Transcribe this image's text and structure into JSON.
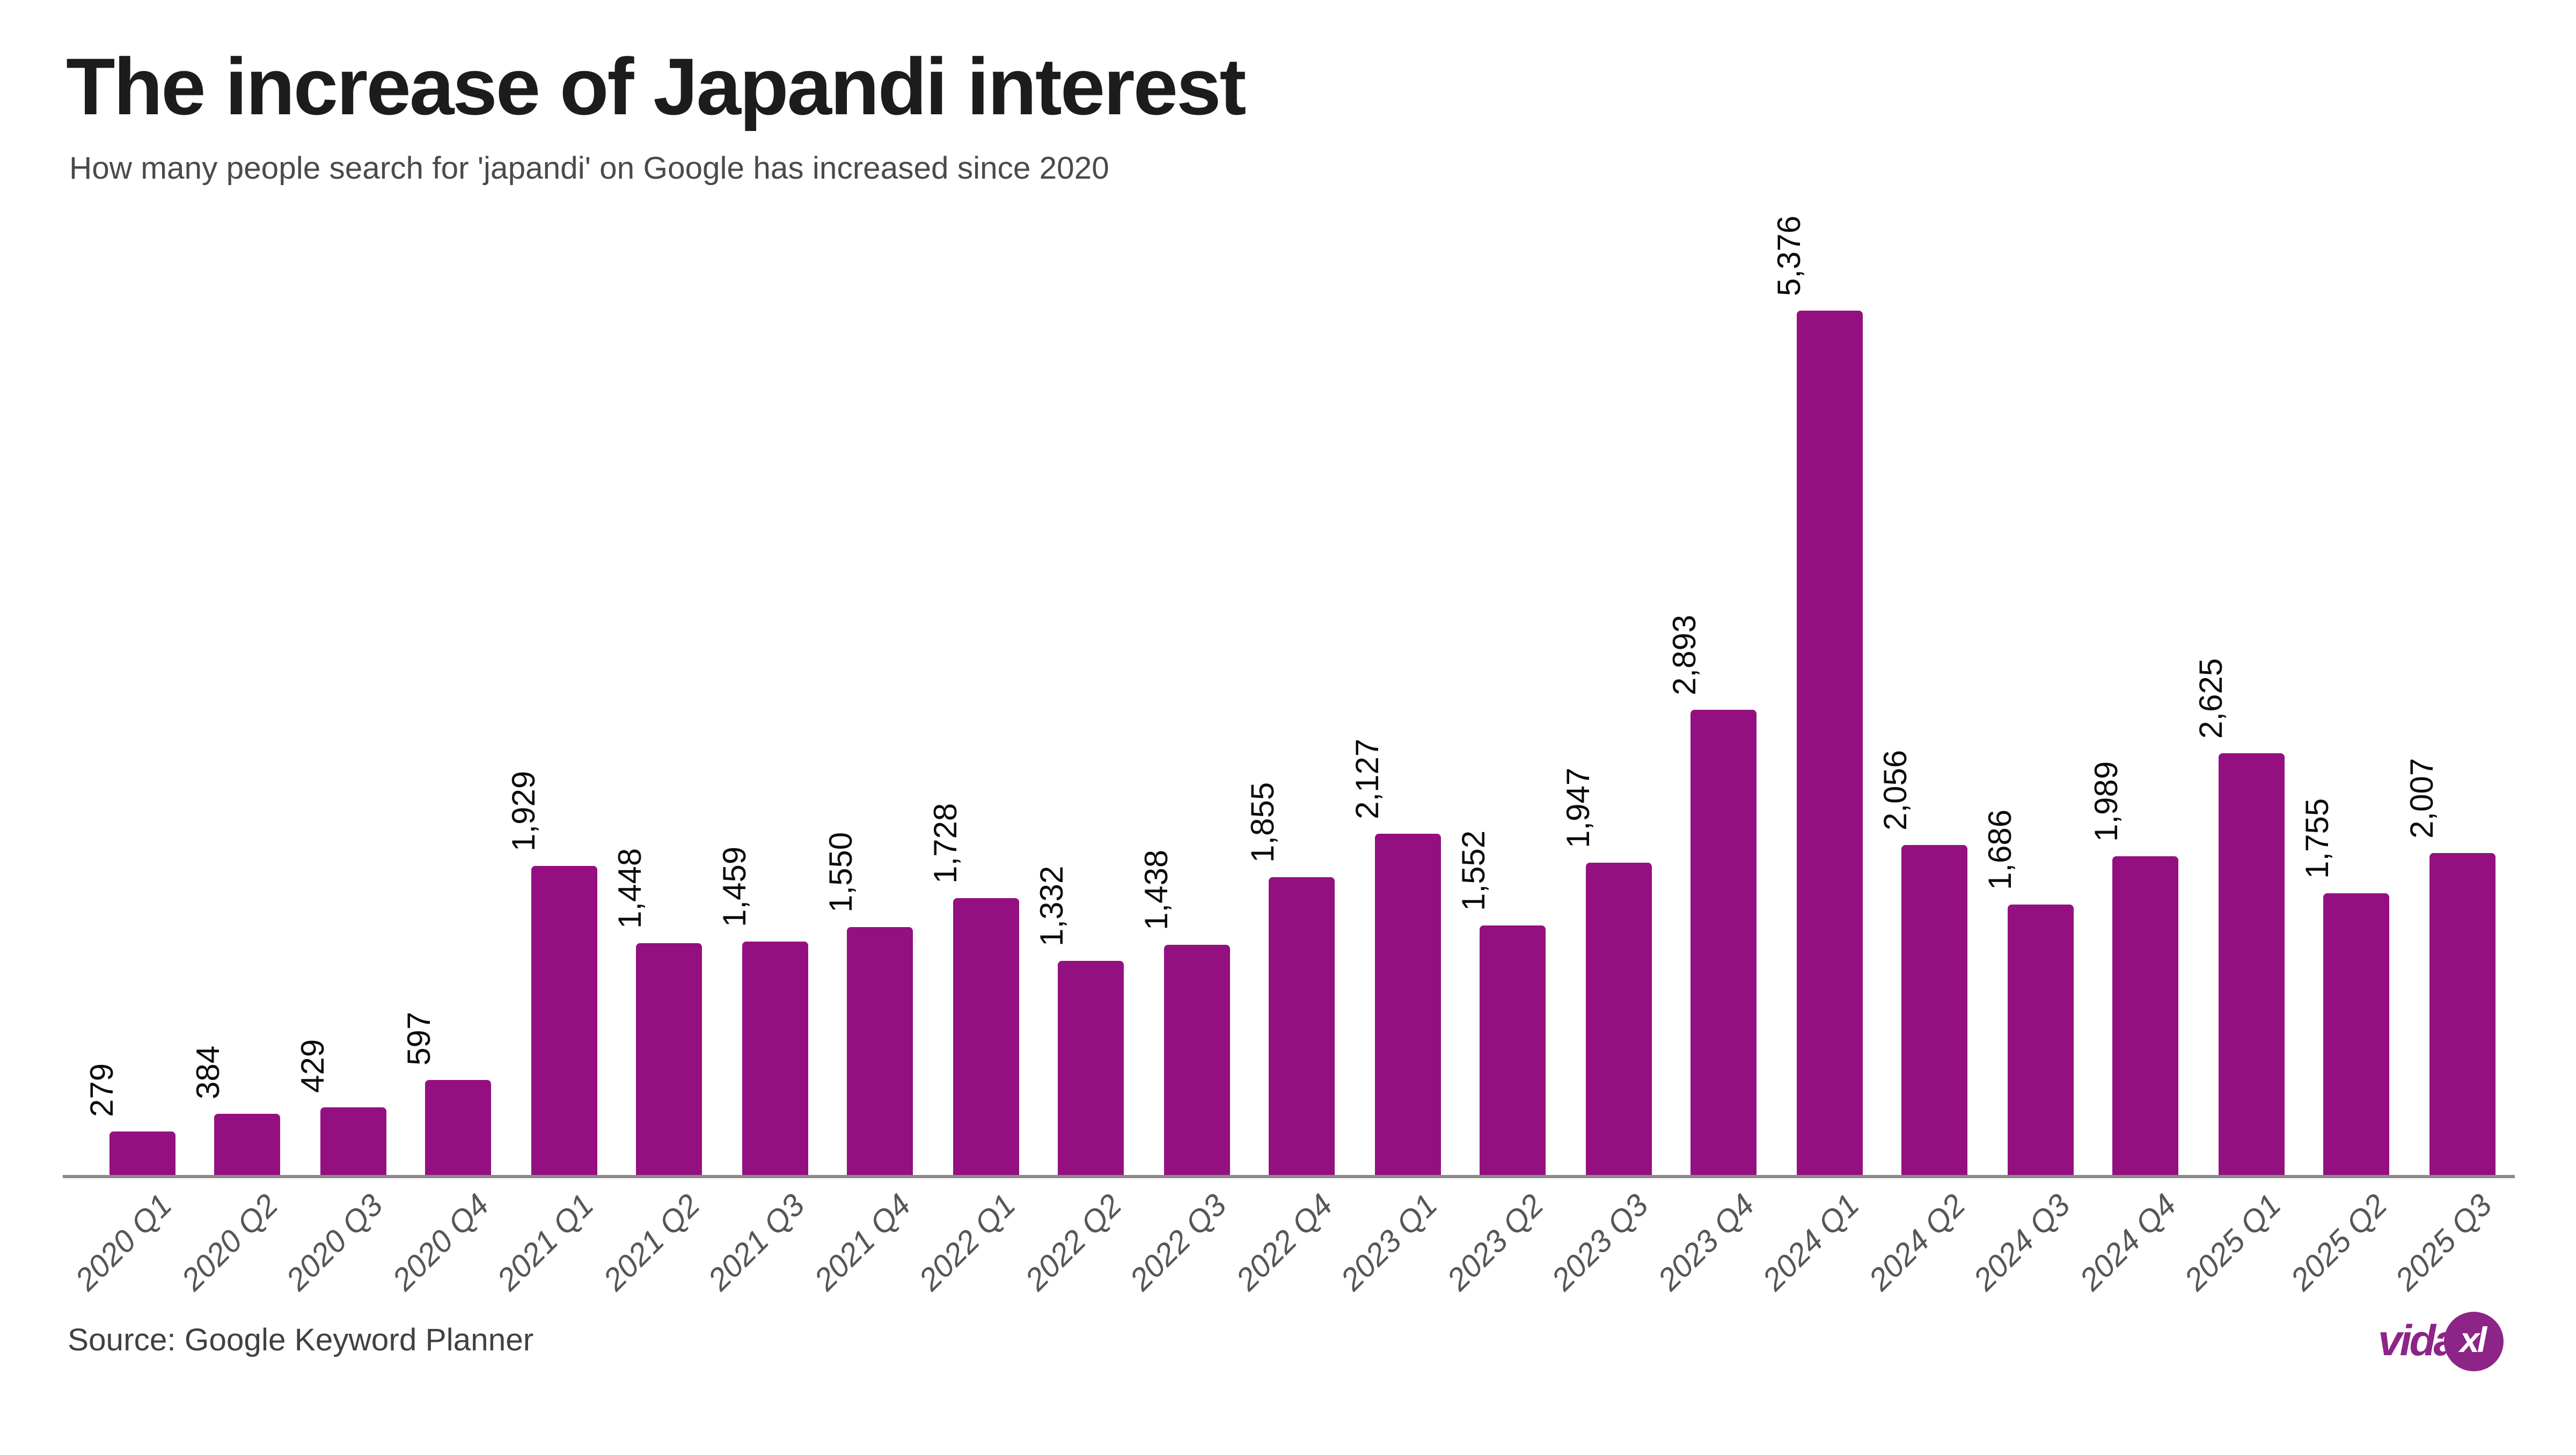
{
  "header": {
    "title": "The increase of Japandi interest",
    "subtitle": "How many people search for 'japandi' on Google has increased since 2020"
  },
  "chart_data": {
    "type": "bar",
    "title": "The increase of Japandi interest",
    "subtitle": "How many people search for 'japandi' on Google has increased since 2020",
    "categories": [
      "2020 Q1",
      "2020 Q2",
      "2020 Q3",
      "2020 Q4",
      "2021 Q1",
      "2021 Q2",
      "2021 Q3",
      "2021 Q4",
      "2022 Q1",
      "2022 Q2",
      "2022 Q3",
      "2022 Q4",
      "2023 Q1",
      "2023 Q2",
      "2023 Q3",
      "2023 Q4",
      "2024 Q1",
      "2024 Q2",
      "2024 Q3",
      "2024 Q4",
      "2025 Q1",
      "2025 Q2",
      "2025 Q3"
    ],
    "values": [
      279,
      384,
      429,
      597,
      1929,
      1448,
      1459,
      1550,
      1728,
      1332,
      1438,
      1855,
      2127,
      1552,
      1947,
      2893,
      5376,
      2056,
      1686,
      1989,
      2625,
      1755,
      2007
    ],
    "value_labels": [
      "279",
      "384",
      "429",
      "597",
      "1,929",
      "1,448",
      "1,459",
      "1,550",
      "1,728",
      "1,332",
      "1,438",
      "1,855",
      "2,127",
      "1,552",
      "1,947",
      "2,893",
      "5,376",
      "2,056",
      "1,686",
      "1,989",
      "2,625",
      "1,755",
      "2,007"
    ],
    "xlabel": "",
    "ylabel": "",
    "ylim": [
      0,
      5376
    ],
    "grid": false,
    "legend": null,
    "bar_color": "#941080",
    "value_labels_rotation": -90,
    "x_tick_rotation": -45
  },
  "footer": {
    "source": "Source: Google Keyword Planner"
  },
  "logo": {
    "vida": "vida",
    "xl": "xl"
  },
  "colors": {
    "background": "#ffffff",
    "bar": "#941080",
    "title": "#1c1c1e",
    "subtitle": "#4a4a4c",
    "axis_line": "#8a8a8a",
    "x_label": "#55565a",
    "value_label": "#0b0b0b",
    "source": "#414144",
    "logo": "#8d2488"
  }
}
